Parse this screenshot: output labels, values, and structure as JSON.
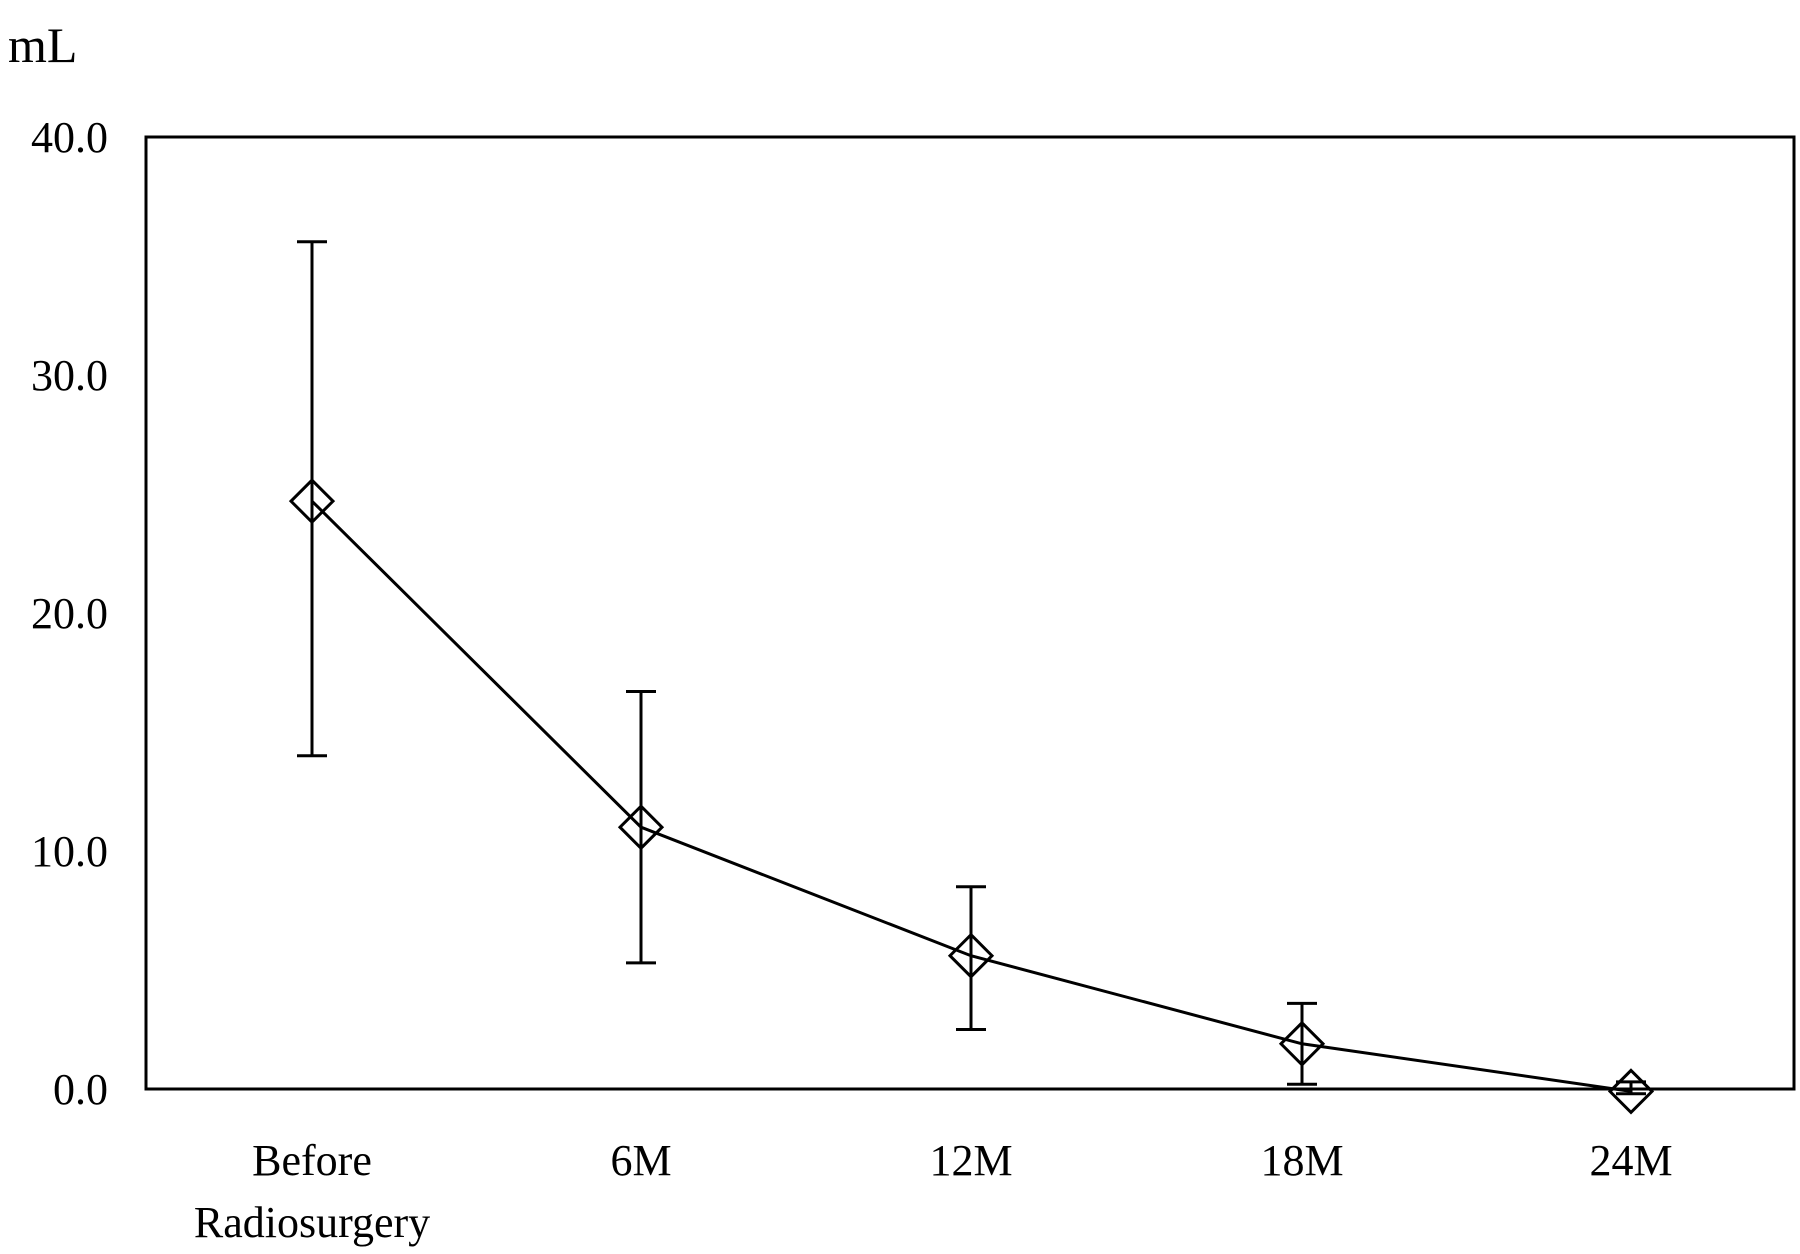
{
  "chart_data": {
    "type": "line",
    "ylabel": "mL",
    "xlabel": "",
    "ylim": [
      0,
      40
    ],
    "yticks": [
      "0.0",
      "10.0",
      "20.0",
      "30.0",
      "40.0"
    ],
    "categories": [
      "Before Radiosurgery",
      "6M",
      "12M",
      "18M",
      "24M"
    ],
    "category_lines": [
      [
        "Before",
        "Radiosurgery"
      ],
      [
        "6M"
      ],
      [
        "12M"
      ],
      [
        "18M"
      ],
      [
        "24M"
      ]
    ],
    "series": [
      {
        "values": [
          24.7,
          11.0,
          5.6,
          1.9,
          -0.1
        ],
        "error_upper": [
          35.6,
          16.7,
          8.5,
          3.6,
          0.3
        ],
        "error_lower": [
          14.0,
          5.3,
          2.5,
          0.2,
          -0.2
        ],
        "marker": "open-diamond",
        "color": "#000000"
      }
    ],
    "grid": false,
    "legend": "none"
  }
}
